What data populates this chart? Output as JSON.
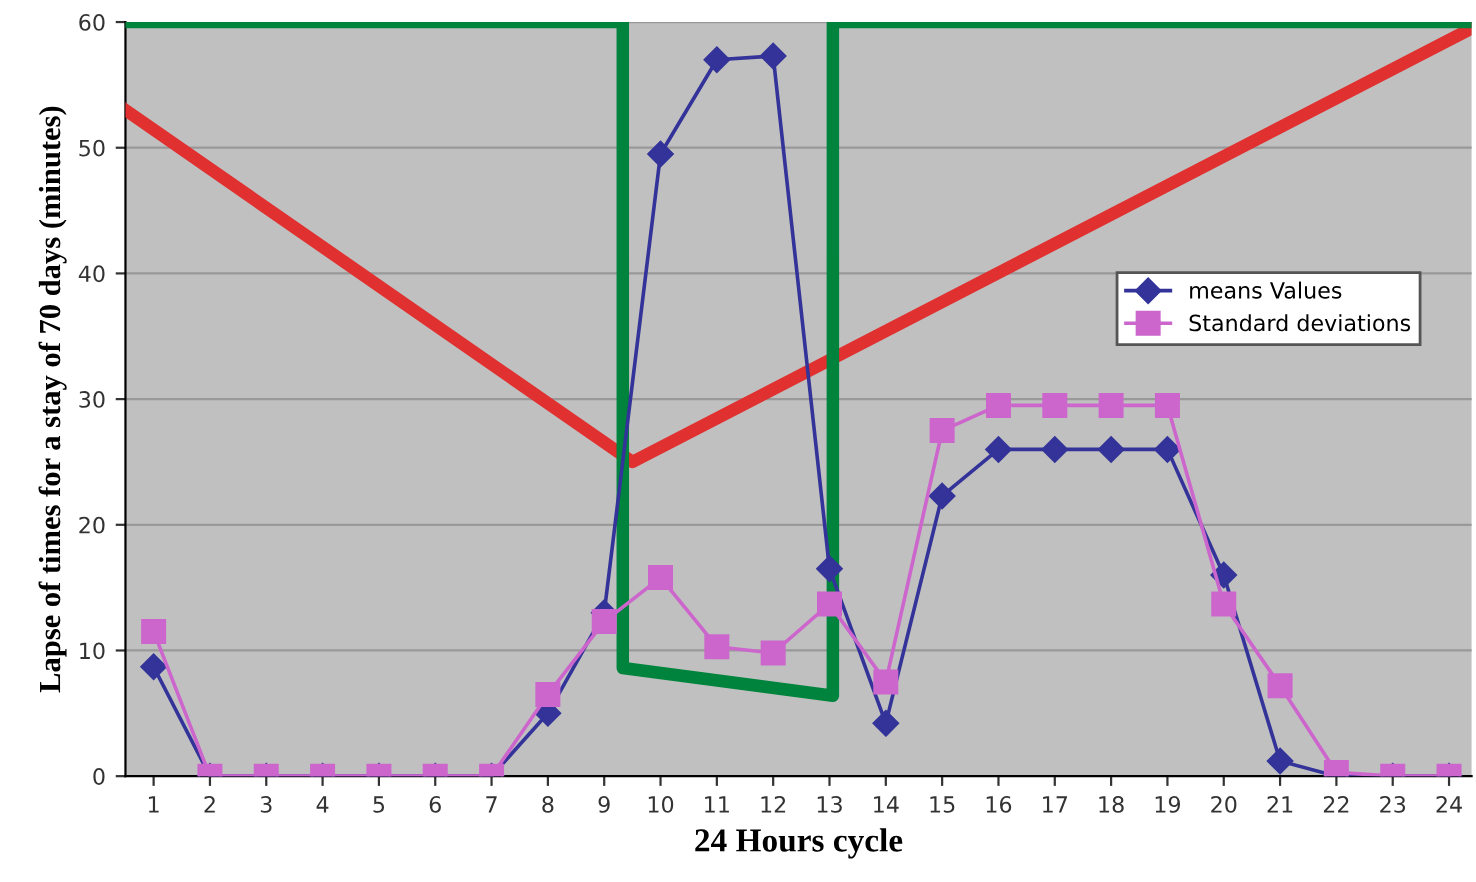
{
  "chart_data": {
    "type": "line",
    "xlabel": "24 Hours cycle",
    "ylabel": "Lapse of times for a stay of 70 days (minutes)",
    "x": [
      1,
      2,
      3,
      4,
      5,
      6,
      7,
      8,
      9,
      10,
      11,
      12,
      13,
      14,
      15,
      16,
      17,
      18,
      19,
      20,
      21,
      22,
      23,
      24
    ],
    "xlim": [
      0.5,
      24.4
    ],
    "xticks": [
      1,
      2,
      3,
      4,
      5,
      6,
      7,
      8,
      9,
      10,
      11,
      12,
      13,
      14,
      15,
      16,
      17,
      18,
      19,
      20,
      21,
      22,
      23,
      24
    ],
    "ylim": [
      0,
      60
    ],
    "yticks": [
      0,
      10,
      20,
      30,
      40,
      50,
      60
    ],
    "grid": "y",
    "legend": "right",
    "series": [
      {
        "name": "means Values",
        "color": "#333399",
        "marker": "diamond",
        "values": [
          8.7,
          0,
          0,
          0,
          0,
          0,
          0,
          5,
          13,
          49.5,
          57,
          57.3,
          16.5,
          4.2,
          22.3,
          26,
          26,
          26,
          26,
          16,
          1.2,
          0,
          0,
          0
        ]
      },
      {
        "name": "Standard deviations",
        "color": "#cc66cc",
        "marker": "square",
        "values": [
          11.5,
          0,
          0,
          0,
          0,
          0,
          0,
          6.5,
          12.3,
          15.8,
          10.3,
          9.8,
          13.7,
          7.5,
          27.5,
          29.5,
          29.5,
          29.5,
          29.5,
          13.7,
          7.2,
          0.3,
          0,
          0
        ]
      },
      {
        "color": "#e03030",
        "marker": "none",
        "x": [
          0.5,
          9.5,
          24.4
        ],
        "values": [
          53,
          25,
          59.5
        ]
      },
      {
        "color": "#00843d",
        "marker": "none",
        "x": [
          0.5,
          9.33,
          9.33,
          13.06,
          13.06,
          24.4
        ],
        "values": [
          60,
          60,
          8.6,
          6.4,
          60,
          60
        ]
      }
    ]
  }
}
